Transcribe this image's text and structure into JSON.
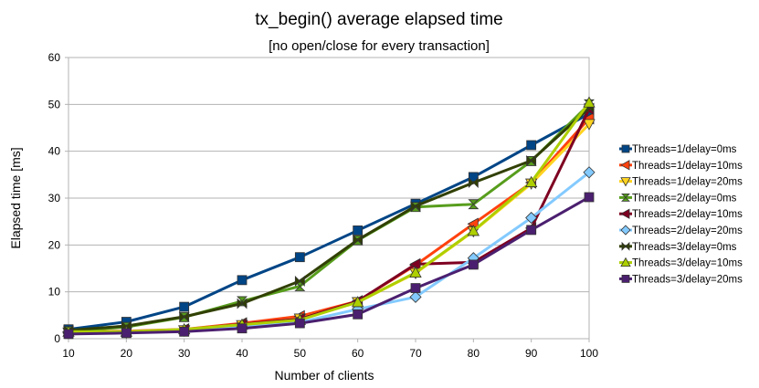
{
  "chart_data": {
    "type": "line",
    "title": "tx_begin() average elapsed time",
    "subtitle": "[no open/close for every transaction]",
    "xlabel": "Number of clients",
    "ylabel": "Elapsed time [ms]",
    "x": [
      10,
      20,
      30,
      40,
      50,
      60,
      70,
      80,
      90,
      100
    ],
    "ylim": [
      0,
      60
    ],
    "yticks": [
      0,
      10,
      20,
      30,
      40,
      50,
      60
    ],
    "grid": true,
    "legend_position": "right",
    "series": [
      {
        "name": "Threads=1/delay=0ms",
        "color": "#004586",
        "marker": "square",
        "values": [
          2.0,
          3.6,
          6.8,
          12.5,
          17.4,
          23.1,
          28.8,
          34.5,
          41.3,
          48.0
        ]
      },
      {
        "name": "Threads=1/delay=10ms",
        "color": "#ff420e",
        "marker": "arrow-left",
        "values": [
          1.5,
          1.6,
          2.0,
          3.3,
          4.8,
          8.0,
          15.7,
          24.5,
          33.3,
          47.0
        ]
      },
      {
        "name": "Threads=1/delay=20ms",
        "color": "#ffd320",
        "marker": "triangle-down",
        "values": [
          1.3,
          1.4,
          1.8,
          2.9,
          4.3,
          7.8,
          14.0,
          22.9,
          33.1,
          45.8
        ]
      },
      {
        "name": "Threads=2/delay=0ms",
        "color": "#579d1c",
        "marker": "bowtie",
        "values": [
          1.6,
          2.5,
          4.6,
          8.0,
          11.2,
          21.0,
          28.1,
          28.7,
          37.9,
          50.0
        ]
      },
      {
        "name": "Threads=2/delay=10ms",
        "color": "#7e0021",
        "marker": "arrow-left",
        "values": [
          1.4,
          1.5,
          1.9,
          3.1,
          4.2,
          8.0,
          15.9,
          16.3,
          23.6,
          49.0
        ]
      },
      {
        "name": "Threads=2/delay=20ms",
        "color": "#83caff",
        "marker": "diamond",
        "values": [
          1.2,
          1.3,
          1.7,
          2.5,
          3.5,
          6.3,
          8.9,
          17.2,
          25.8,
          35.5
        ]
      },
      {
        "name": "Threads=3/delay=0ms",
        "color": "#314004",
        "marker": "bowtie-h",
        "values": [
          1.8,
          2.7,
          4.7,
          7.5,
          12.3,
          21.1,
          28.3,
          33.3,
          38.0,
          49.2
        ]
      },
      {
        "name": "Threads=3/delay=10ms",
        "color": "#aecf00",
        "marker": "triangle-up",
        "values": [
          1.5,
          1.5,
          2.0,
          3.0,
          4.0,
          7.8,
          14.1,
          23.0,
          33.4,
          50.4
        ]
      },
      {
        "name": "Threads=3/delay=20ms",
        "color": "#4b1f6f",
        "marker": "square",
        "values": [
          1.0,
          1.2,
          1.5,
          2.2,
          3.3,
          5.2,
          10.8,
          15.8,
          23.2,
          30.2
        ]
      }
    ]
  }
}
